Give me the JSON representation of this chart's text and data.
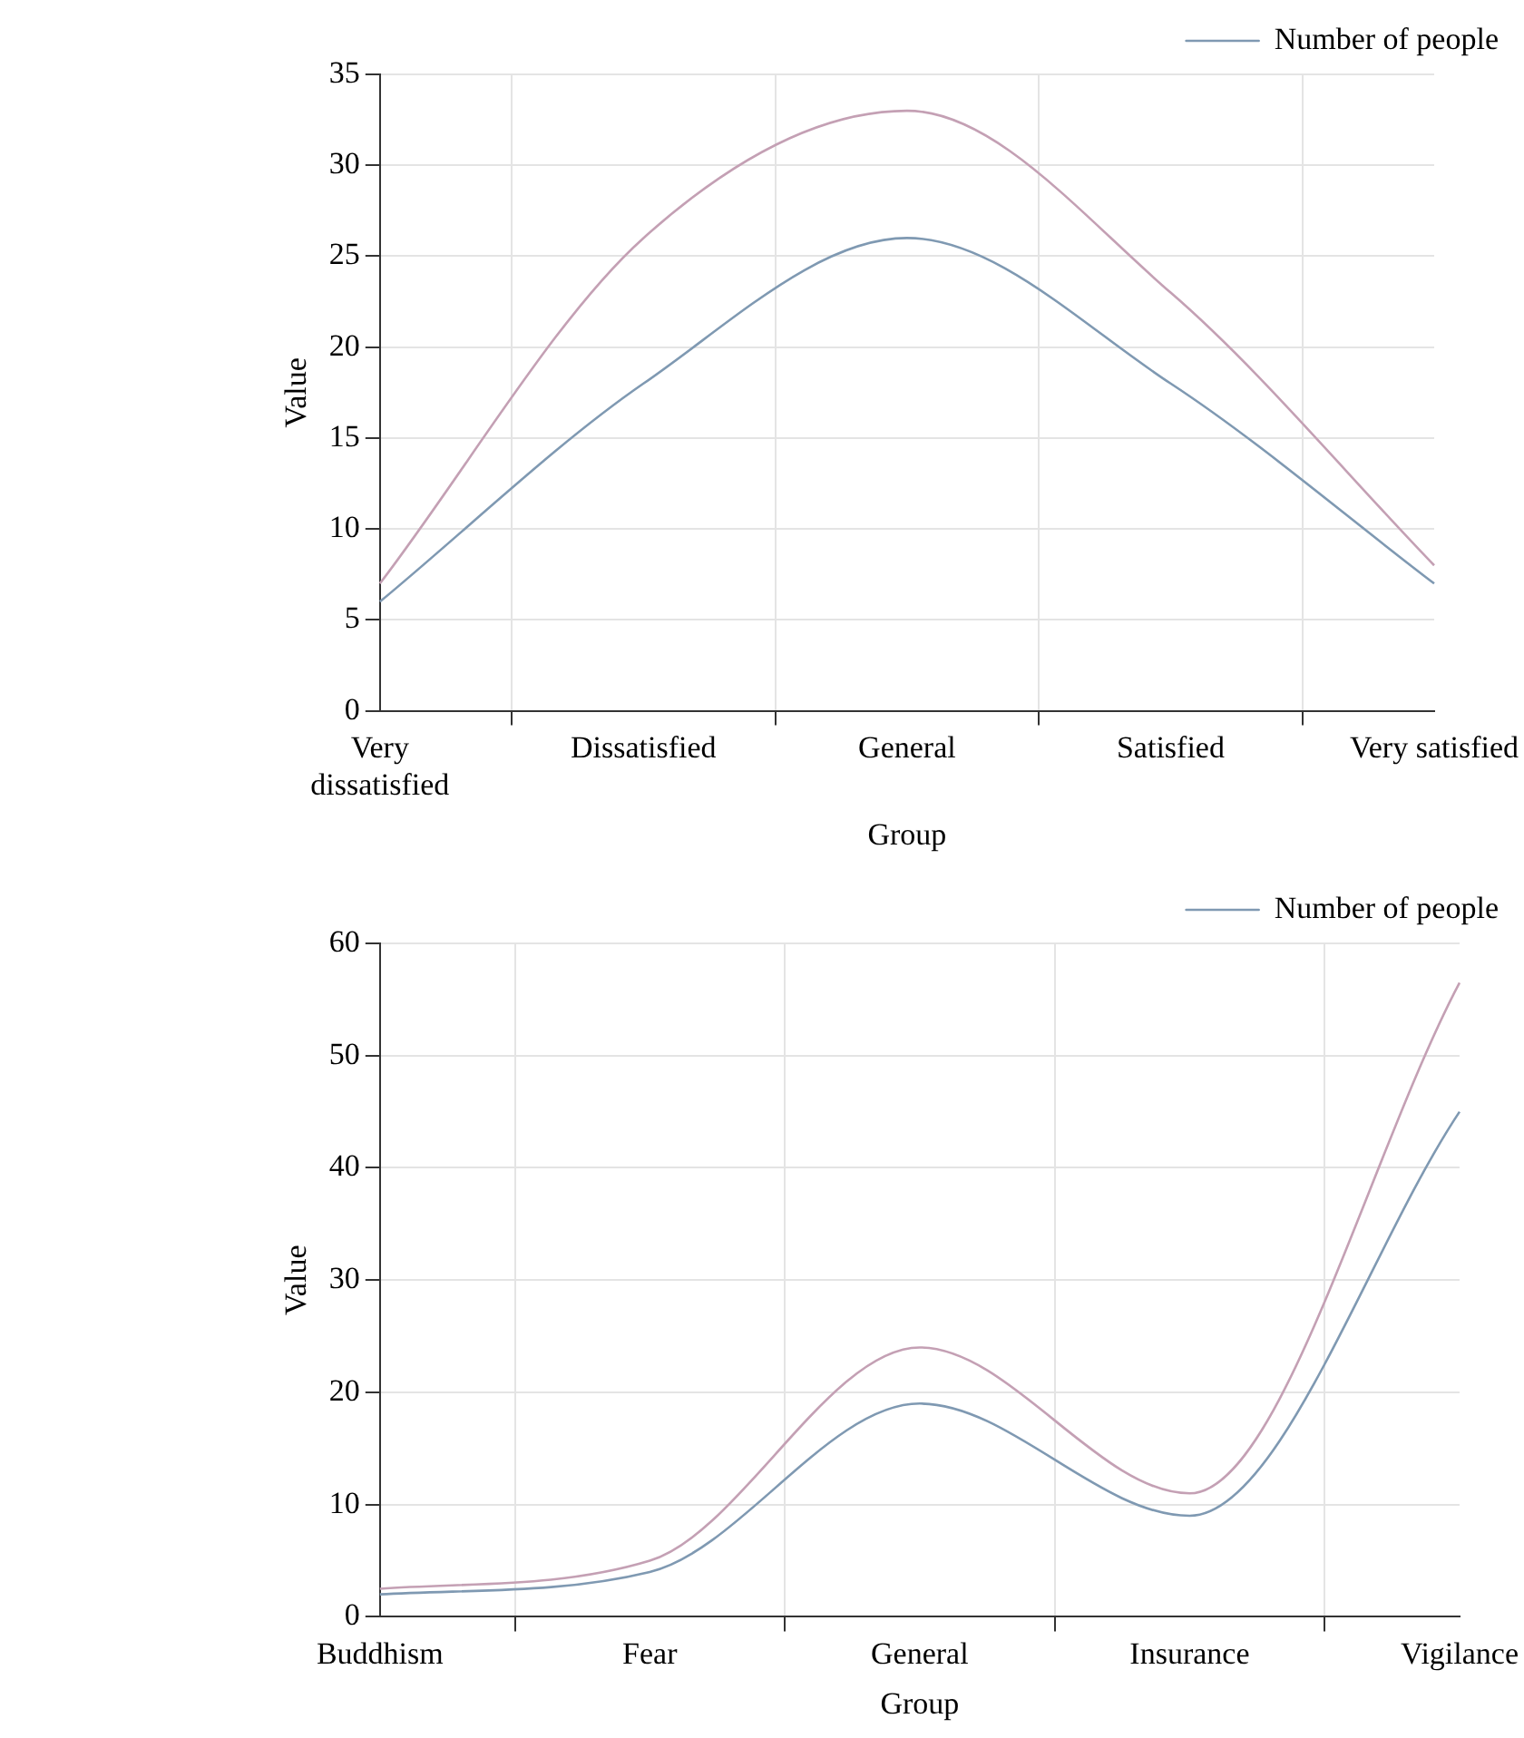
{
  "chart_data": [
    {
      "type": "line",
      "xlabel": "Group",
      "ylabel": "Value",
      "categories": [
        "Very dissatisfied",
        "Dissatisfied",
        "General",
        "Satisfied",
        "Very satisfied"
      ],
      "series": [
        {
          "name": "Number of people",
          "color": "#7f99b2",
          "values": [
            6,
            18,
            26,
            18,
            7
          ]
        },
        {
          "color": "#c4a0b4",
          "values": [
            7,
            26,
            33,
            23,
            8
          ]
        }
      ],
      "ylim": [
        0,
        35
      ],
      "yticks": [
        0,
        5,
        10,
        15,
        20,
        25,
        30,
        35
      ],
      "grid": true,
      "legend": "top right",
      "marker": "none",
      "line_style": "solid"
    },
    {
      "type": "line",
      "xlabel": "Group",
      "ylabel": "Value",
      "categories": [
        "Buddhism",
        "Fear",
        "General",
        "Insurance",
        "Vigilance"
      ],
      "series": [
        {
          "name": "Number of people",
          "color": "#7f99b2",
          "values": [
            2,
            4,
            19,
            9,
            45
          ]
        },
        {
          "color": "#c4a0b4",
          "values": [
            2.5,
            5,
            24,
            11,
            56.5
          ]
        }
      ],
      "ylim": [
        0,
        60
      ],
      "yticks": [
        0,
        10,
        20,
        30,
        40,
        50,
        60
      ],
      "grid": true,
      "legend": "top right",
      "marker": "none",
      "line_style": "solid"
    }
  ]
}
